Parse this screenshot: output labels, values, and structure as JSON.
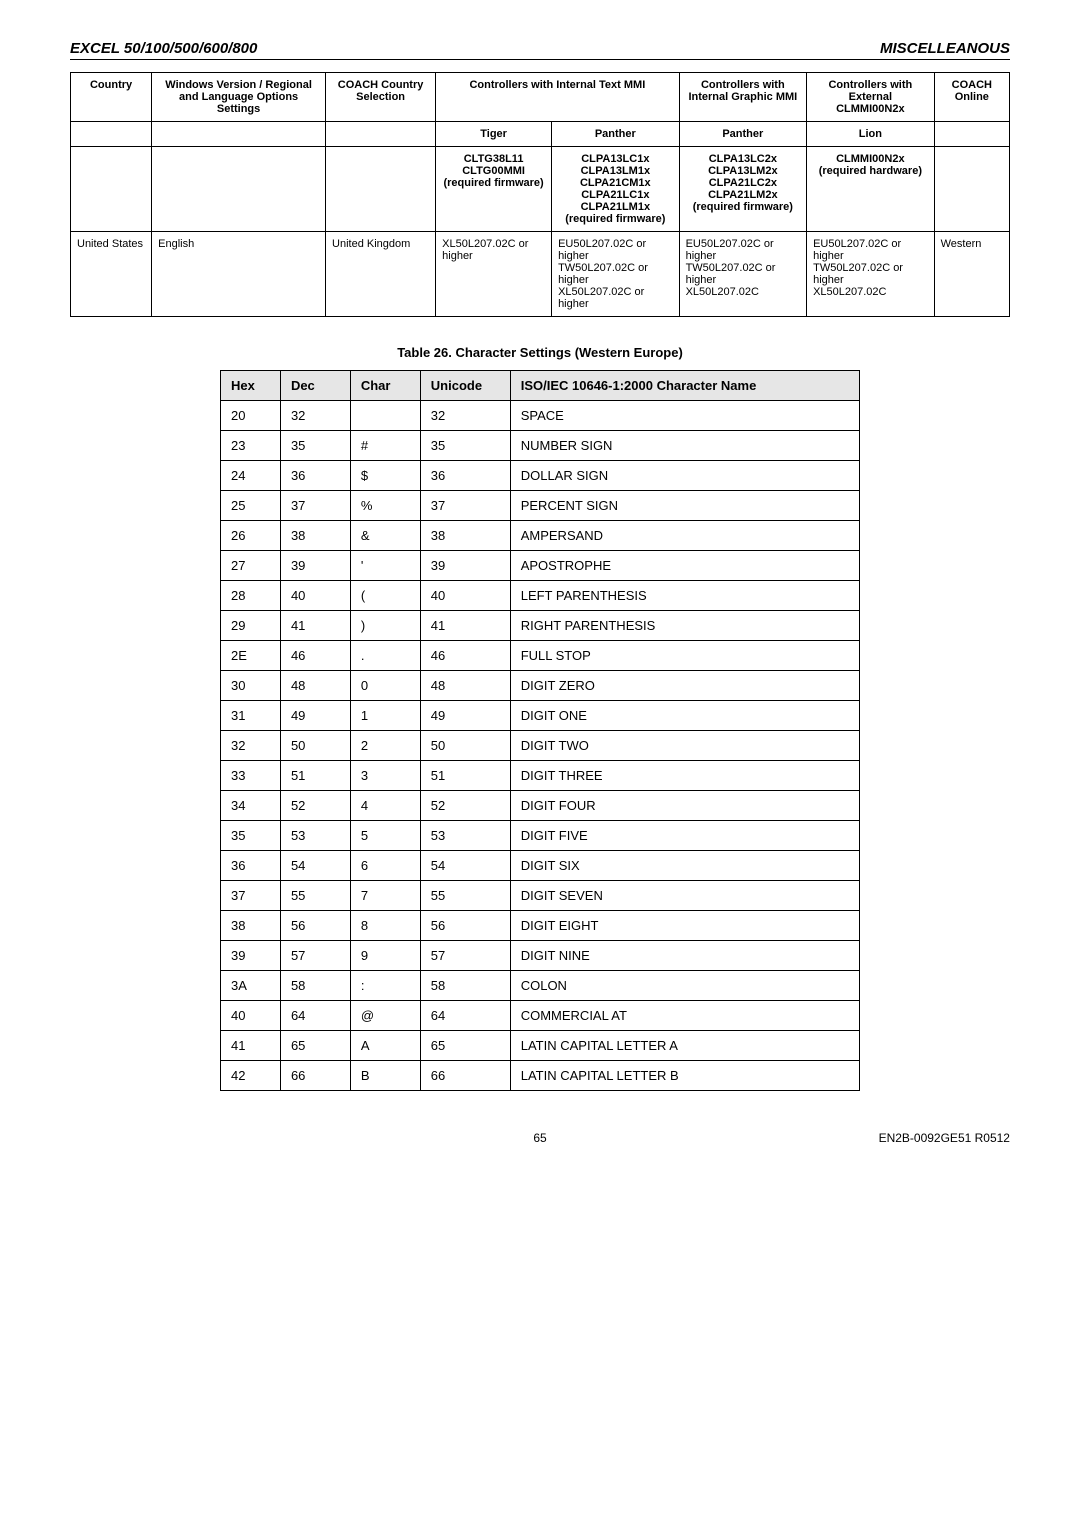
{
  "header": {
    "left": "EXCEL 50/100/500/600/800",
    "right": "MISCELLEANOUS"
  },
  "footer": {
    "page": "65",
    "doc": "EN2B-0092GE51 R0512"
  },
  "table1": {
    "headRow1": {
      "country": "Country",
      "windows": "Windows Version / Regional and Language Options Settings",
      "coachCountry": "COACH Country Selection",
      "ctrlText": "Controllers with Internal Text MMI",
      "ctrlGraphic": "Controllers with Internal Graphic MMI",
      "ctrlExt": "Controllers with External CLMMI00N2x",
      "coachOnline": "COACH Online"
    },
    "headRow2": {
      "tiger": "Tiger",
      "pantherA": "Panther",
      "pantherB": "Panther",
      "lion": "Lion"
    },
    "headRow3": {
      "tiger": "CLTG38L11 CLTG00MMI (required firmware)",
      "pantherA": "CLPA13LC1x CLPA13LM1x CLPA21CM1x CLPA21LC1x CLPA21LM1x (required firmware)",
      "pantherB": "CLPA13LC2x CLPA13LM2x CLPA21LC2x CLPA21LM2x (required firmware)",
      "lion": "CLMMI00N2x (required hardware)"
    },
    "dataRow": {
      "country": "United States",
      "windows": "English",
      "coachCountry": "United Kingdom",
      "tiger": "XL50L207.02C or higher",
      "pantherA": "EU50L207.02C or higher\nTW50L207.02C or higher\nXL50L207.02C or higher",
      "pantherB": "EU50L207.02C or higher\nTW50L207.02C or higher\nXL50L207.02C",
      "lion": "EU50L207.02C or higher\nTW50L207.02C or higher\nXL50L207.02C",
      "coachOnline": "Western"
    }
  },
  "table2": {
    "caption": "Table 26. Character Settings (Western Europe)",
    "columns": [
      "Hex",
      "Dec",
      "Char",
      "Unicode",
      "ISO/IEC 10646-1:2000 Character Name"
    ],
    "rows": [
      [
        "20",
        "32",
        "",
        "32",
        "SPACE"
      ],
      [
        "23",
        "35",
        "#",
        "35",
        "NUMBER SIGN"
      ],
      [
        "24",
        "36",
        "$",
        "36",
        "DOLLAR SIGN"
      ],
      [
        "25",
        "37",
        "%",
        "37",
        "PERCENT SIGN"
      ],
      [
        "26",
        "38",
        "&",
        "38",
        "AMPERSAND"
      ],
      [
        "27",
        "39",
        "'",
        "39",
        "APOSTROPHE"
      ],
      [
        "28",
        "40",
        "(",
        "40",
        "LEFT PARENTHESIS"
      ],
      [
        "29",
        "41",
        ")",
        "41",
        "RIGHT PARENTHESIS"
      ],
      [
        "2E",
        "46",
        ".",
        "46",
        "FULL STOP"
      ],
      [
        "30",
        "48",
        "0",
        "48",
        "DIGIT ZERO"
      ],
      [
        "31",
        "49",
        "1",
        "49",
        "DIGIT ONE"
      ],
      [
        "32",
        "50",
        "2",
        "50",
        "DIGIT TWO"
      ],
      [
        "33",
        "51",
        "3",
        "51",
        "DIGIT THREE"
      ],
      [
        "34",
        "52",
        "4",
        "52",
        "DIGIT FOUR"
      ],
      [
        "35",
        "53",
        "5",
        "53",
        "DIGIT FIVE"
      ],
      [
        "36",
        "54",
        "6",
        "54",
        "DIGIT SIX"
      ],
      [
        "37",
        "55",
        "7",
        "55",
        "DIGIT SEVEN"
      ],
      [
        "38",
        "56",
        "8",
        "56",
        "DIGIT EIGHT"
      ],
      [
        "39",
        "57",
        "9",
        "57",
        "DIGIT NINE"
      ],
      [
        "3A",
        "58",
        ":",
        "58",
        "COLON"
      ],
      [
        "40",
        "64",
        "@",
        "64",
        "COMMERCIAL AT"
      ],
      [
        "41",
        "65",
        "A",
        "65",
        "LATIN CAPITAL LETTER A"
      ],
      [
        "42",
        "66",
        "B",
        "66",
        "LATIN CAPITAL LETTER B"
      ]
    ]
  }
}
